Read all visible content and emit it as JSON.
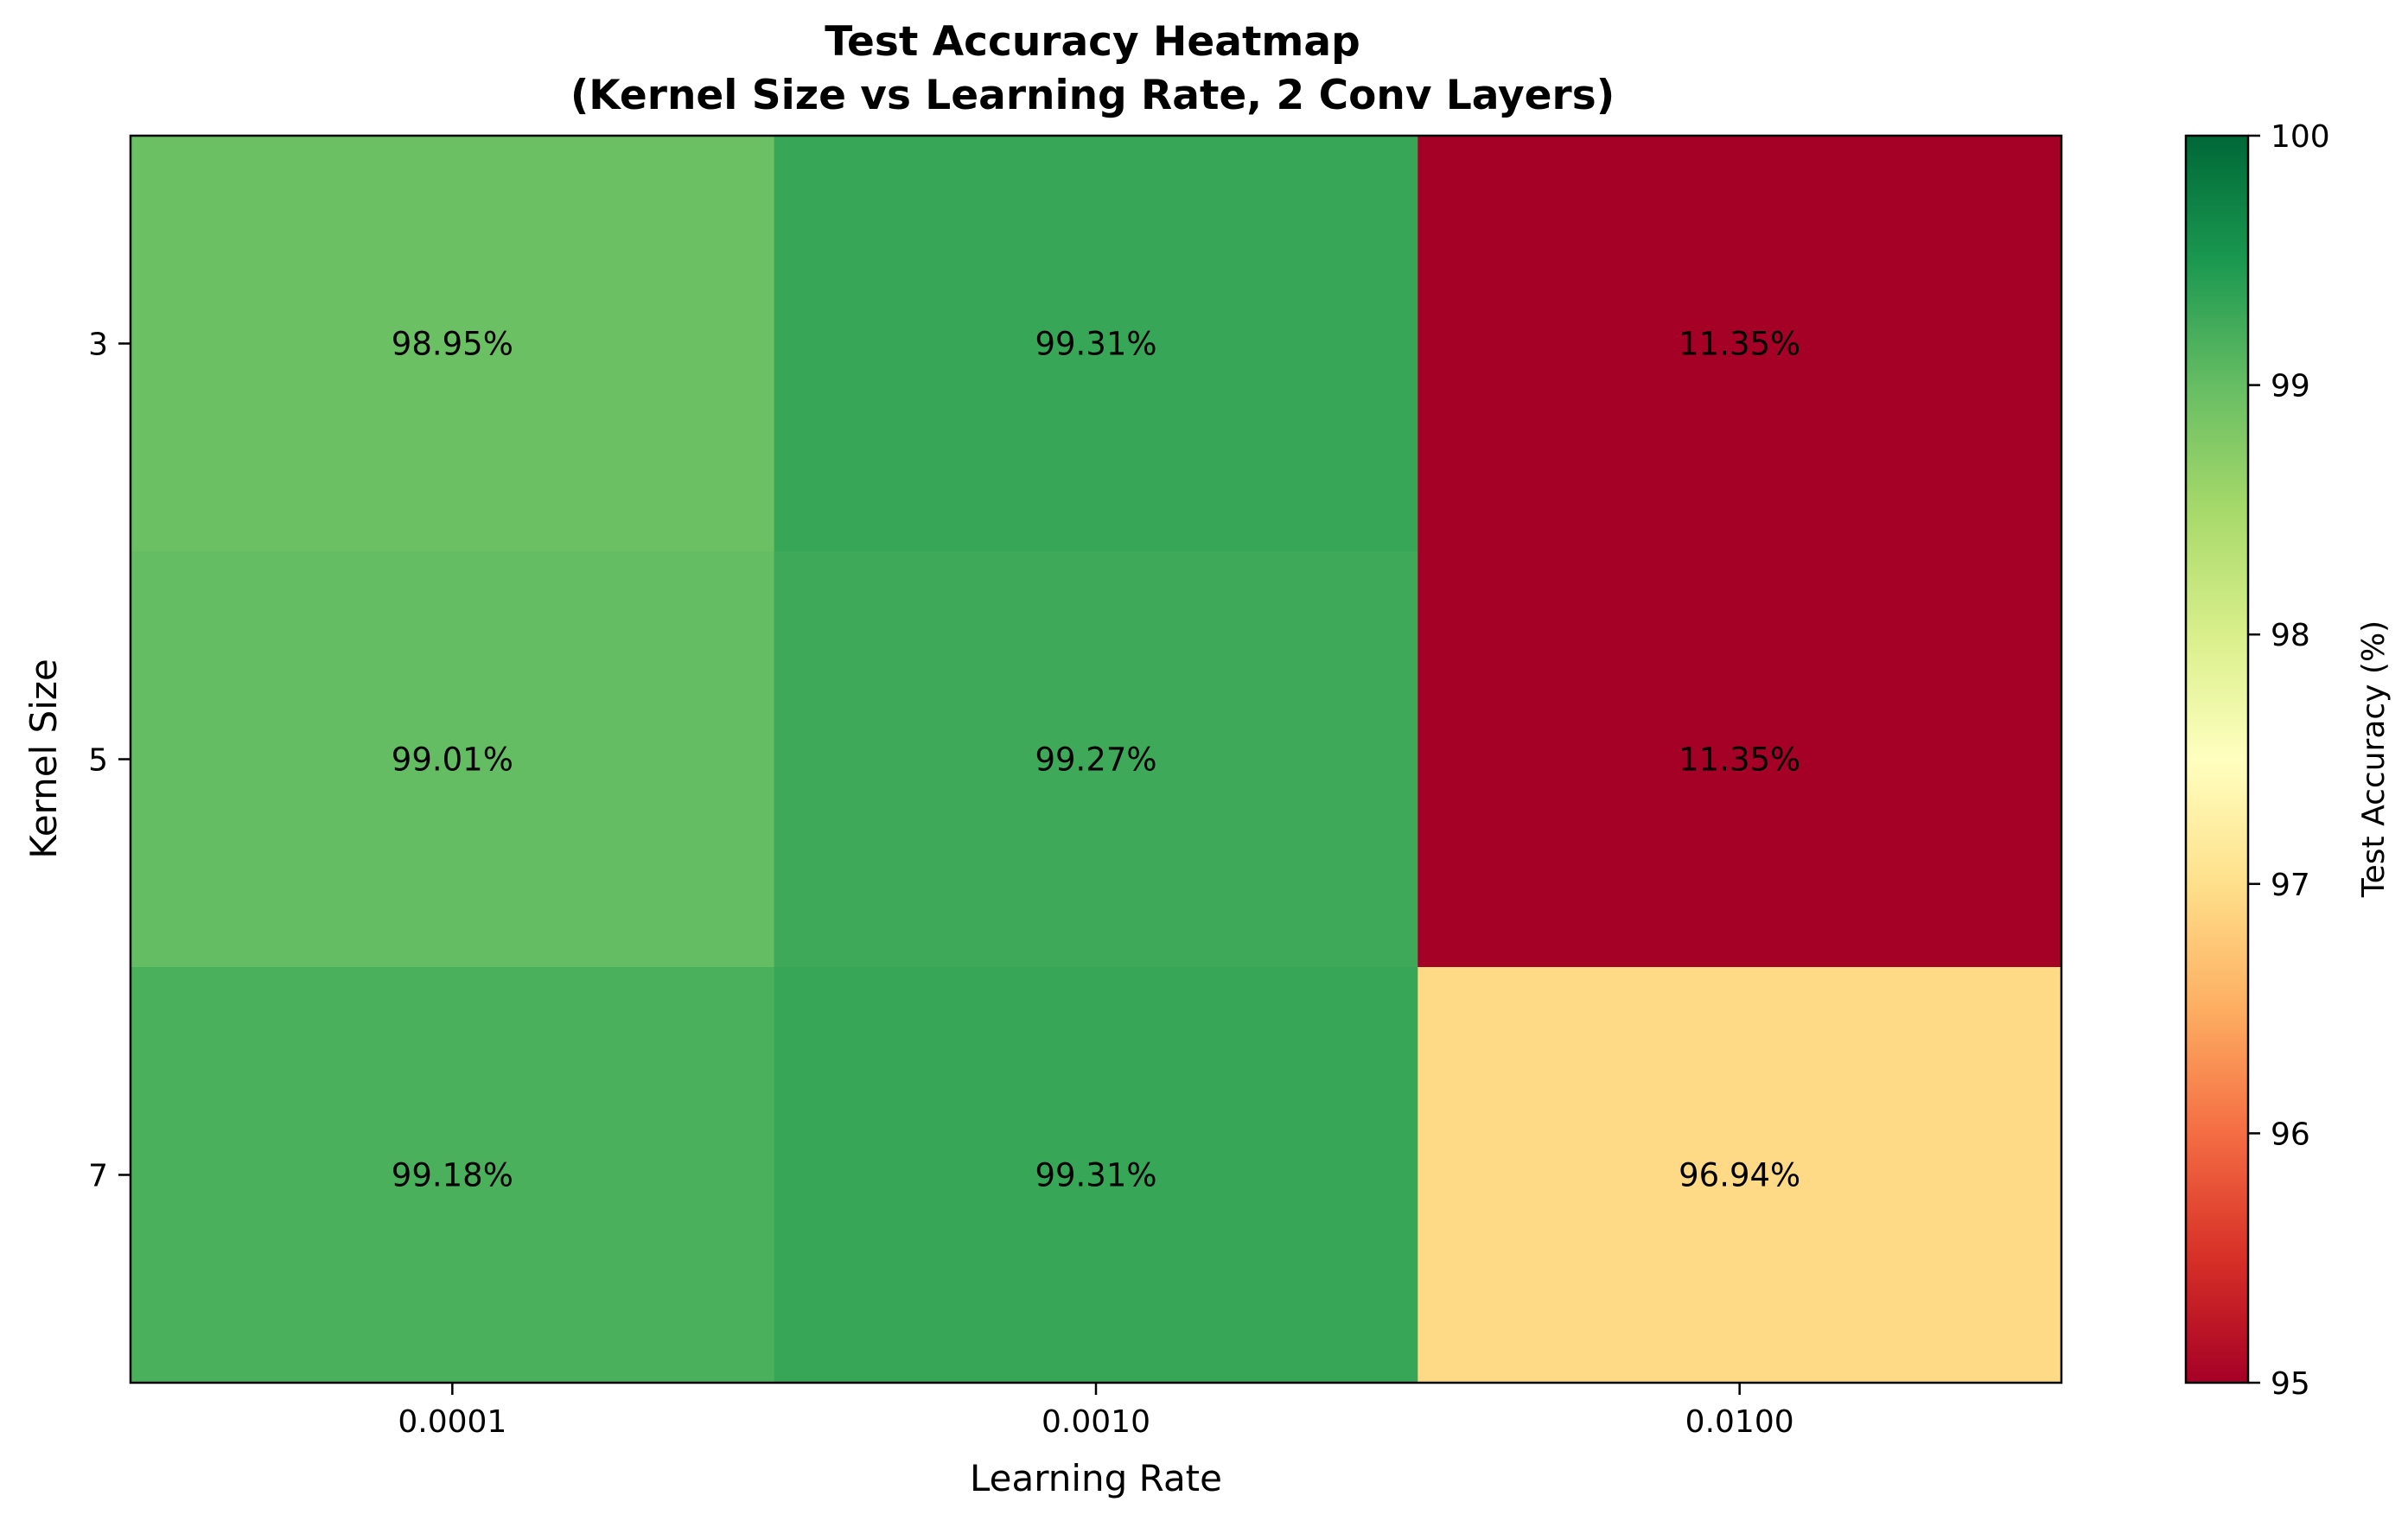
{
  "chart_data": {
    "type": "heatmap",
    "title_lines": [
      "Test Accuracy Heatmap",
      "(Kernel Size vs Learning Rate, 2 Conv Layers)"
    ],
    "xlabel": "Learning Rate",
    "ylabel": "Kernel Size",
    "x_categories": [
      "0.0001",
      "0.0010",
      "0.0100"
    ],
    "y_categories": [
      "3",
      "5",
      "7"
    ],
    "values": [
      [
        98.95,
        99.31,
        11.35
      ],
      [
        99.01,
        99.27,
        11.35
      ],
      [
        99.18,
        99.31,
        96.94
      ]
    ],
    "cell_labels": [
      [
        "98.95%",
        "99.31%",
        "11.35%"
      ],
      [
        "99.01%",
        "99.27%",
        "11.35%"
      ],
      [
        "99.18%",
        "99.31%",
        "96.94%"
      ]
    ],
    "colormap": "RdYlGn",
    "colormap_stops": [
      "#a50026",
      "#d73027",
      "#f46d43",
      "#fdae61",
      "#fee08b",
      "#ffffbf",
      "#d9ef8b",
      "#a6d96a",
      "#66bd63",
      "#1a9850",
      "#006837"
    ],
    "colorbar": {
      "label": "Test Accuracy (%)",
      "range": [
        95,
        100
      ],
      "ticks": [
        "95",
        "96",
        "97",
        "98",
        "99",
        "100"
      ]
    }
  }
}
